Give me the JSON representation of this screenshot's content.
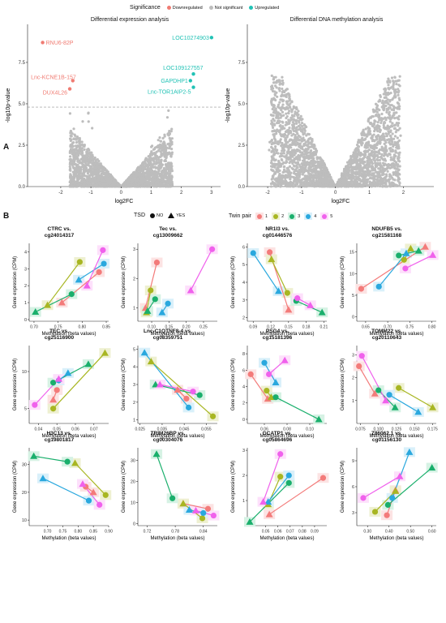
{
  "panel_a": "A",
  "panel_b": "B",
  "legend_sig": {
    "title": "Significance",
    "items": [
      {
        "label": "Downregulated",
        "color": "#f07b72"
      },
      {
        "label": "Not significant",
        "color": "#bdbdbd"
      },
      {
        "label": "Upregulated",
        "color": "#21c2b5"
      }
    ]
  },
  "legend_tsd": {
    "title": "TSD",
    "no": "NO",
    "yes": "YES"
  },
  "legend_twin": {
    "title": "Twin pair",
    "items": [
      {
        "label": "1",
        "color": "#f37b7a"
      },
      {
        "label": "2",
        "color": "#a8b622"
      },
      {
        "label": "3",
        "color": "#1aaf6c"
      },
      {
        "label": "4",
        "color": "#2aa8de"
      },
      {
        "label": "5",
        "color": "#f061ec"
      }
    ]
  },
  "chart_data": [
    {
      "type": "scatter",
      "title": "Differential expression analysis",
      "xlabel": "log2FC",
      "ylabel": "-log10p-value",
      "xticks": [
        "-2",
        "-1",
        "0",
        "1",
        "2",
        "3"
      ],
      "yticks": [
        "0.0",
        "2.5",
        "5.0",
        "7.5"
      ],
      "xlim": [
        -3.1,
        3.3
      ],
      "ylim": [
        0,
        9.8
      ],
      "threshold": 4.8,
      "points": [
        {
          "x": -2.6,
          "y": 8.7,
          "label": "RNU6-82P",
          "sig": "down"
        },
        {
          "x": -1.6,
          "y": 6.4,
          "label": "Lnc-KCNE1B-157",
          "sig": "down"
        },
        {
          "x": -1.7,
          "y": 5.9,
          "label": "DUX4L26",
          "sig": "down"
        },
        {
          "x": 3.0,
          "y": 9.0,
          "label": "LOC10274903",
          "sig": "up"
        },
        {
          "x": 2.4,
          "y": 6.8,
          "label": "LOC109127557",
          "sig": "up"
        },
        {
          "x": 2.3,
          "y": 6.4,
          "label": "GAPDHP1",
          "sig": "up"
        },
        {
          "x": 2.4,
          "y": 6.0,
          "label": "Lnc-TOR1AIP2-5",
          "sig": "up"
        }
      ]
    },
    {
      "type": "scatter",
      "title": "Differential DNA methylation analysis",
      "xlabel": "log2FC",
      "ylabel": "-log10p-value",
      "xticks": [
        "-2",
        "-1",
        "0",
        "1",
        "2"
      ],
      "yticks": [
        "0.0",
        "2.5",
        "5.0",
        "7.5"
      ],
      "xlim": [
        -2.6,
        2.9
      ],
      "ylim": [
        0,
        9.8
      ]
    },
    {
      "type": "line",
      "title": "CTRC vs.",
      "subtitle": "cg24014317",
      "xlabel": "Methylation (beta values)",
      "ylabel": "Gene expression (CPM)",
      "xlim": [
        0.69,
        0.855
      ],
      "ylim": [
        -0.1,
        4.5
      ],
      "xticks": [
        0.7,
        0.75,
        0.8,
        0.85
      ],
      "yticks": [
        0,
        1,
        2,
        3,
        4
      ],
      "pairs": [
        {
          "twin": 1,
          "no": [
            0.835,
            2.8
          ],
          "yes": [
            0.758,
            1.0
          ]
        },
        {
          "twin": 2,
          "no": [
            0.795,
            3.4
          ],
          "yes": [
            0.728,
            0.85
          ]
        },
        {
          "twin": 3,
          "no": [
            0.778,
            1.5
          ],
          "yes": [
            0.703,
            0.45
          ]
        },
        {
          "twin": 4,
          "no": [
            0.845,
            3.3
          ],
          "yes": [
            0.793,
            2.35
          ]
        },
        {
          "twin": 5,
          "no": [
            0.843,
            4.1
          ],
          "yes": [
            0.81,
            2.0
          ]
        }
      ]
    },
    {
      "type": "line",
      "title": "Tec vs.",
      "subtitle": "cg13009662",
      "xlabel": "Methylation (beta values)",
      "ylabel": "Gene expression (CPM)",
      "xlim": [
        0.06,
        0.29
      ],
      "ylim": [
        0.55,
        3.2
      ],
      "xticks": [
        0.1,
        0.15,
        0.2,
        0.25
      ],
      "yticks": [
        1,
        2,
        3
      ],
      "pairs": [
        {
          "twin": 1,
          "no": [
            0.115,
            2.55
          ],
          "yes": [
            0.082,
            1.0
          ]
        },
        {
          "twin": 2,
          "no": [
            0.097,
            1.6
          ],
          "yes": [
            0.085,
            0.85
          ]
        },
        {
          "twin": 3,
          "no": [
            0.11,
            1.3
          ],
          "yes": [
            0.088,
            0.9
          ]
        },
        {
          "twin": 4,
          "no": [
            0.147,
            1.15
          ],
          "yes": [
            0.13,
            0.85
          ]
        },
        {
          "twin": 5,
          "no": [
            0.275,
            3.0
          ],
          "yes": [
            0.213,
            1.6
          ]
        }
      ]
    },
    {
      "type": "line",
      "title": "NR1I3 vs.",
      "subtitle": "cg01446576",
      "xlabel": "Methylation (beta values)",
      "ylabel": "Gene expression (CPM)",
      "xlim": [
        0.08,
        0.215
      ],
      "ylim": [
        1.8,
        6.2
      ],
      "xticks": [
        0.09,
        0.12,
        0.15,
        0.18,
        0.21
      ],
      "yticks": [
        2,
        3,
        4,
        5,
        6
      ],
      "pairs": [
        {
          "twin": 1,
          "no": [
            0.118,
            5.7
          ],
          "yes": [
            0.15,
            2.45
          ]
        },
        {
          "twin": 2,
          "no": [
            0.148,
            3.4
          ],
          "yes": [
            0.121,
            5.3
          ]
        },
        {
          "twin": 3,
          "no": [
            0.163,
            2.95
          ],
          "yes": [
            0.207,
            2.3
          ]
        },
        {
          "twin": 4,
          "no": [
            0.09,
            5.65
          ],
          "yes": [
            0.133,
            3.5
          ]
        },
        {
          "twin": 5,
          "no": [
            0.165,
            3.1
          ],
          "yes": [
            0.187,
            2.7
          ]
        }
      ]
    },
    {
      "type": "line",
      "title": "NDUFB5 vs.",
      "subtitle": "cg21581168",
      "xlabel": "Methylation (beta values)",
      "ylabel": "Gene expression (CPM)",
      "xlim": [
        0.63,
        0.81
      ],
      "ylim": [
        -1,
        17
      ],
      "xticks": [
        0.65,
        0.7,
        0.75,
        0.8
      ],
      "yticks": [
        0,
        5,
        10,
        15
      ],
      "pairs": [
        {
          "twin": 1,
          "no": [
            0.64,
            6.5
          ],
          "yes": [
            0.785,
            16.2
          ]
        },
        {
          "twin": 2,
          "no": [
            0.737,
            13.2
          ],
          "yes": [
            0.752,
            15.8
          ]
        },
        {
          "twin": 3,
          "no": [
            0.725,
            14.2
          ],
          "yes": [
            0.77,
            15.3
          ]
        },
        {
          "twin": 4,
          "no": [
            0.68,
            7.0
          ],
          "yes": [
            0.742,
            14.7
          ]
        },
        {
          "twin": 5,
          "no": [
            0.74,
            11.2
          ],
          "yes": [
            0.802,
            14.3
          ]
        }
      ]
    },
    {
      "type": "line",
      "title": "TEC vs.",
      "subtitle": "cg25116900",
      "xlabel": "Methylation (beta values)",
      "ylabel": "Gene expression (CPM)",
      "xlim": [
        0.035,
        0.078
      ],
      "ylim": [
        3,
        13.5
      ],
      "xticks": [
        0.04,
        0.05,
        0.06,
        0.07
      ],
      "yticks": [
        5,
        10
      ],
      "pairs": [
        {
          "twin": 1,
          "no": [
            0.05,
            7.5
          ],
          "yes": [
            0.048,
            6.2
          ]
        },
        {
          "twin": 2,
          "no": [
            0.048,
            5.0
          ],
          "yes": [
            0.076,
            12.5
          ]
        },
        {
          "twin": 3,
          "no": [
            0.048,
            8.5
          ],
          "yes": [
            0.067,
            11.0
          ]
        },
        {
          "twin": 4,
          "no": [
            0.051,
            8.8
          ],
          "yes": [
            0.056,
            9.8
          ]
        },
        {
          "twin": 5,
          "no": [
            0.038,
            5.5
          ],
          "yes": [
            0.051,
            9.0
          ]
        }
      ]
    },
    {
      "type": "line",
      "title": "Lnc-C1QTNF8-4 vs.",
      "subtitle": "cg08359751",
      "xlabel": "Methylation (beta values)",
      "ylabel": "Gene expression (CPM)",
      "xlim": [
        0.024,
        0.06
      ],
      "ylim": [
        0.8,
        5.2
      ],
      "xticks": [
        0.025,
        0.035,
        0.045,
        0.055
      ],
      "yticks": [
        1,
        2,
        3,
        4,
        5
      ],
      "pairs": [
        {
          "twin": 1,
          "no": [
            0.046,
            2.2
          ],
          "yes": [
            0.042,
            2.7
          ]
        },
        {
          "twin": 2,
          "no": [
            0.058,
            1.2
          ],
          "yes": [
            0.03,
            4.3
          ]
        },
        {
          "twin": 3,
          "no": [
            0.052,
            2.4
          ],
          "yes": [
            0.032,
            3.0
          ]
        },
        {
          "twin": 4,
          "no": [
            0.047,
            1.7
          ],
          "yes": [
            0.027,
            4.8
          ]
        },
        {
          "twin": 5,
          "no": [
            0.049,
            2.6
          ],
          "yes": [
            0.034,
            3.0
          ]
        }
      ]
    },
    {
      "type": "line",
      "title": "PSG4 vs.",
      "subtitle": "cg15181396",
      "xlabel": "Methylation (beta values)",
      "ylabel": "Gene expression (CPM)",
      "xlim": [
        0.045,
        0.115
      ],
      "ylim": [
        -0.5,
        9
      ],
      "xticks": [
        0.06,
        0.08,
        0.1
      ],
      "yticks": [
        0,
        2,
        4,
        6,
        8
      ],
      "pairs": [
        {
          "twin": 1,
          "no": [
            0.048,
            5.5
          ],
          "yes": [
            0.063,
            2.5
          ]
        },
        {
          "twin": 2,
          "no": [
            0.062,
            3.5
          ],
          "yes": [
            0.066,
            2.7
          ]
        },
        {
          "twin": 3,
          "no": [
            0.07,
            2.7
          ],
          "yes": [
            0.108,
            0.0
          ]
        },
        {
          "twin": 4,
          "no": [
            0.06,
            6.9
          ],
          "yes": [
            0.07,
            4.5
          ]
        },
        {
          "twin": 5,
          "no": [
            0.064,
            5.5
          ],
          "yes": [
            0.078,
            7.2
          ]
        }
      ]
    },
    {
      "type": "line",
      "title": "TOMM22 vs.",
      "subtitle": "cg20110643",
      "xlabel": "Methylation (beta values)",
      "ylabel": "Gene expression (CPM)",
      "xlim": [
        0.07,
        0.18
      ],
      "ylim": [
        0,
        3.4
      ],
      "xticks": [
        0.075,
        0.1,
        0.125,
        0.15,
        0.175
      ],
      "yticks": [
        1,
        2,
        3
      ],
      "pairs": [
        {
          "twin": 1,
          "no": [
            0.073,
            2.5
          ],
          "yes": [
            0.095,
            1.3
          ]
        },
        {
          "twin": 2,
          "no": [
            0.128,
            1.55
          ],
          "yes": [
            0.175,
            0.7
          ]
        },
        {
          "twin": 3,
          "no": [
            0.1,
            1.45
          ],
          "yes": [
            0.123,
            0.7
          ]
        },
        {
          "twin": 4,
          "no": [
            0.115,
            1.25
          ],
          "yes": [
            0.155,
            0.5
          ]
        },
        {
          "twin": 5,
          "no": [
            0.077,
            2.95
          ],
          "yes": [
            0.11,
            1.0
          ]
        }
      ]
    },
    {
      "type": "line",
      "title": "H3C13 vs.",
      "subtitle": "cg19801817",
      "xlabel": "Methylation (beta values)",
      "ylabel": "Gene expression (CPM)",
      "xlim": [
        0.64,
        0.9
      ],
      "ylim": [
        8,
        36
      ],
      "xticks": [
        0.7,
        0.75,
        0.8,
        0.85,
        0.9
      ],
      "yticks": [
        10,
        20,
        30
      ],
      "pairs": [
        {
          "twin": 1,
          "no": [
            0.825,
            22
          ],
          "yes": [
            0.85,
            20
          ]
        },
        {
          "twin": 2,
          "no": [
            0.89,
            19
          ],
          "yes": [
            0.79,
            30.5
          ]
        },
        {
          "twin": 3,
          "no": [
            0.765,
            31
          ],
          "yes": [
            0.655,
            33
          ]
        },
        {
          "twin": 4,
          "no": [
            0.835,
            17
          ],
          "yes": [
            0.685,
            25
          ]
        },
        {
          "twin": 5,
          "no": [
            0.87,
            15.5
          ],
          "yes": [
            0.815,
            23
          ]
        }
      ]
    },
    {
      "type": "line",
      "title": "TRIM26BP vs.",
      "subtitle": "cg00304076",
      "xlabel": "Methylation (beta values)",
      "ylabel": "Gene expression (CPM)",
      "xlim": [
        0.7,
        0.87
      ],
      "ylim": [
        -1,
        36
      ],
      "xticks": [
        0.72,
        0.78,
        0.84
      ],
      "yticks": [
        0,
        10,
        20,
        30
      ],
      "pairs": [
        {
          "twin": 1,
          "no": [
            0.85,
            7.0
          ],
          "yes": [
            0.797,
            9.5
          ]
        },
        {
          "twin": 2,
          "no": [
            0.838,
            2.5
          ],
          "yes": [
            0.797,
            9.5
          ]
        },
        {
          "twin": 3,
          "no": [
            0.774,
            12
          ],
          "yes": [
            0.74,
            33
          ]
        },
        {
          "twin": 4,
          "no": [
            0.84,
            5.0
          ],
          "yes": [
            0.81,
            6.5
          ]
        },
        {
          "twin": 5,
          "no": [
            0.862,
            3.8
          ],
          "yes": [
            0.824,
            6.2
          ]
        }
      ]
    },
    {
      "type": "line",
      "title": "GCATP1 vs.",
      "subtitle": "cg05864696",
      "xlabel": "Methylation (beta values)",
      "ylabel": "Gene expression (CPM)",
      "xlim": [
        0.035,
        0.1
      ],
      "ylim": [
        0,
        3.1
      ],
      "xticks": [
        0.05,
        0.06,
        0.07,
        0.08,
        0.09
      ],
      "yticks": [
        1,
        2,
        3
      ],
      "pairs": [
        {
          "twin": 1,
          "no": [
            0.097,
            1.9
          ],
          "yes": [
            0.053,
            0.45
          ]
        },
        {
          "twin": 2,
          "no": [
            0.062,
            1.95
          ],
          "yes": [
            0.052,
            0.85
          ]
        },
        {
          "twin": 3,
          "no": [
            0.069,
            1.7
          ],
          "yes": [
            0.037,
            0.15
          ]
        },
        {
          "twin": 4,
          "no": [
            0.069,
            2.0
          ],
          "yes": [
            0.052,
            0.95
          ]
        },
        {
          "twin": 5,
          "no": [
            0.062,
            2.85
          ],
          "yes": [
            0.048,
            0.95
          ]
        }
      ]
    },
    {
      "type": "line",
      "title": "Z86062.1 vs.",
      "subtitle": "cg01156130",
      "xlabel": "Methylation (beta values)",
      "ylabel": "Gene expression (CPM)",
      "xlim": [
        0.25,
        0.62
      ],
      "ylim": [
        1.5,
        10.5
      ],
      "xticks": [
        0.3,
        0.4,
        0.5,
        0.6
      ],
      "yticks": [
        3,
        6,
        9
      ],
      "pairs": [
        {
          "twin": 1,
          "no": [
            0.39,
            2.7
          ],
          "yes": [
            0.43,
            5.6
          ]
        },
        {
          "twin": 2,
          "no": [
            0.335,
            3.1
          ],
          "yes": [
            0.43,
            5.5
          ]
        },
        {
          "twin": 3,
          "no": [
            0.395,
            3.9
          ],
          "yes": [
            0.6,
            8.2
          ]
        },
        {
          "twin": 4,
          "no": [
            0.415,
            4.7
          ],
          "yes": [
            0.495,
            10.0
          ]
        },
        {
          "twin": 5,
          "no": [
            0.28,
            4.7
          ],
          "yes": [
            0.45,
            7.2
          ]
        }
      ]
    }
  ]
}
